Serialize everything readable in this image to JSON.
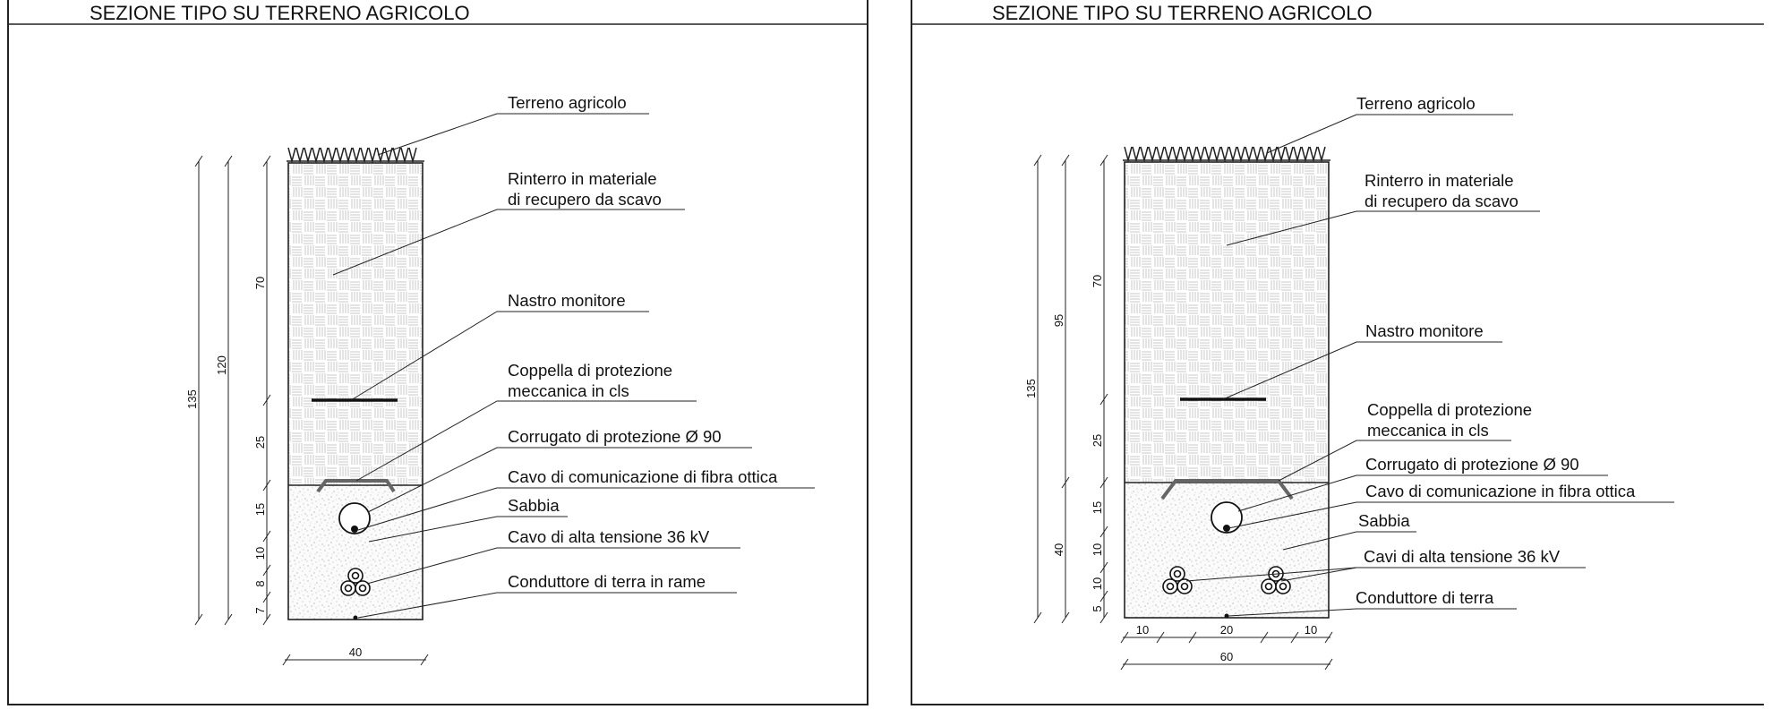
{
  "panels": [
    {
      "title": "SEZIONE TIPO SU TERRENO AGRICOLO",
      "labels": {
        "terreno": "Terreno agricolo",
        "rinterro_1": "Rinterro in materiale",
        "rinterro_2": "di recupero da scavo",
        "nastro": "Nastro monitore",
        "coppella_1": "Coppella di protezione",
        "coppella_2": "meccanica in cls",
        "corrugato": "Corrugato di protezione Ø 90",
        "cavo_fibra": "Cavo di comunicazione di fibra ottica",
        "sabbia": "Sabbia",
        "cavo_at": "Cavo di alta tensione 36 kV",
        "conduttore": "Conduttore di terra in rame"
      },
      "dimensions": {
        "total_depth": "135",
        "depth_120": "120",
        "fill_70": "70",
        "fill_25": "25",
        "d15": "15",
        "d10": "10",
        "d8": "8",
        "d7": "7",
        "width": "40"
      }
    },
    {
      "title": "SEZIONE TIPO SU TERRENO AGRICOLO",
      "labels": {
        "terreno": "Terreno agricolo",
        "rinterro_1": "Rinterro in materiale",
        "rinterro_2": "di recupero da scavo",
        "nastro": "Nastro monitore",
        "coppella_1": "Coppella di protezione",
        "coppella_2": "meccanica in cls",
        "corrugato": "Corrugato di protezione Ø 90",
        "cavo_fibra": "Cavo di comunicazione in fibra ottica",
        "sabbia": "Sabbia",
        "cavo_at": "Cavi di alta tensione 36 kV",
        "conduttore": "Conduttore di terra"
      },
      "dimensions": {
        "total_depth": "135",
        "depth_95": "95",
        "fill_70": "70",
        "fill_25": "25",
        "sand_40": "40",
        "d15": "15",
        "d10a": "10",
        "d10b": "10",
        "d5": "5",
        "w_left": "10",
        "w_mid": "20",
        "w_right": "10",
        "width": "60"
      }
    }
  ]
}
